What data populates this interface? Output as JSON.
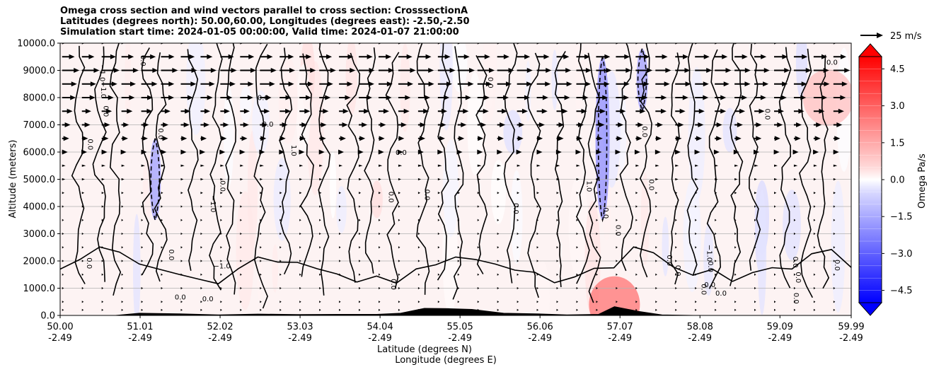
{
  "title_lines": [
    "Omega cross section and wind vectors parallel to cross section: CrosssectionA",
    "Latitudes (degrees north): 50.00,60.00, Longitudes (degrees east): -2.50,-2.50",
    "Simulation start time: 2024-01-05 00:00:00, Valid time: 2024-01-07 21:00:00"
  ],
  "chart_data": {
    "type": "contourf",
    "title": "Omega cross section and wind vectors parallel to cross section: CrosssectionA",
    "ylabel": "Altitude (meters)",
    "xlabel_lines": [
      "Latitude (degrees N)",
      "Longitude (degrees E)"
    ],
    "ylim": [
      0,
      10000
    ],
    "xlim": [
      50.0,
      59.99
    ],
    "y_ticks": [
      {
        "value": 0,
        "label": "0.0"
      },
      {
        "value": 1000,
        "label": "1000.0"
      },
      {
        "value": 2000,
        "label": "2000.0"
      },
      {
        "value": 3000,
        "label": "3000.0"
      },
      {
        "value": 4000,
        "label": "4000.0"
      },
      {
        "value": 5000,
        "label": "5000.0"
      },
      {
        "value": 6000,
        "label": "6000.0"
      },
      {
        "value": 7000,
        "label": "7000.0"
      },
      {
        "value": 8000,
        "label": "8000.0"
      },
      {
        "value": 9000,
        "label": "9000.0"
      },
      {
        "value": 10000,
        "label": "10000.0"
      }
    ],
    "x_ticks": [
      {
        "lat": 50.0,
        "lat_label": "50.00",
        "lon_label": "-2.49"
      },
      {
        "lat": 51.01,
        "lat_label": "51.01",
        "lon_label": "-2.49"
      },
      {
        "lat": 52.02,
        "lat_label": "52.02",
        "lon_label": "-2.49"
      },
      {
        "lat": 53.03,
        "lat_label": "53.03",
        "lon_label": "-2.49"
      },
      {
        "lat": 54.04,
        "lat_label": "54.04",
        "lon_label": "-2.49"
      },
      {
        "lat": 55.05,
        "lat_label": "55.05",
        "lon_label": "-2.49"
      },
      {
        "lat": 56.06,
        "lat_label": "56.06",
        "lon_label": "-2.49"
      },
      {
        "lat": 57.07,
        "lat_label": "57.07",
        "lon_label": "-2.49"
      },
      {
        "lat": 58.08,
        "lat_label": "58.08",
        "lon_label": "-2.49"
      },
      {
        "lat": 59.09,
        "lat_label": "59.09",
        "lon_label": "-2.49"
      },
      {
        "lat": 59.99,
        "lat_label": "59.99",
        "lon_label": "-2.49"
      }
    ],
    "grid": "horizontal",
    "colorbar": {
      "label": "Omega Pa/s",
      "range": [
        -5.0,
        5.0
      ],
      "extend": "both",
      "ticks": [
        {
          "value": 4.5,
          "label": "4.5"
        },
        {
          "value": 3.0,
          "label": "3.0"
        },
        {
          "value": 1.5,
          "label": "1.5"
        },
        {
          "value": 0.0,
          "label": "0.0"
        },
        {
          "value": -1.5,
          "label": "−1.5"
        },
        {
          "value": -3.0,
          "label": "−3.0"
        },
        {
          "value": -4.5,
          "label": "−4.5"
        }
      ],
      "levels": 20,
      "min_color": "#0000ff",
      "zero_color": "#ffffff",
      "max_color": "#ff0000"
    },
    "quiver_key": {
      "label": "25 m/s",
      "speed": 25
    },
    "contour_labels": [
      "0.0",
      "1.0",
      "−1.0"
    ],
    "features": {
      "strong_negative_column": {
        "lat": 56.85,
        "alt_range": [
          3500,
          9500
        ],
        "omega": -1.2
      },
      "negative_columns": [
        {
          "lat": 51.2,
          "alt_range": [
            3500,
            6500
          ],
          "omega": -1.0
        },
        {
          "lat": 57.35,
          "alt_range": [
            7500,
            9800
          ],
          "omega": -1.0
        }
      ],
      "positive_patches": [
        {
          "lat": 59.7,
          "alt": 8000,
          "omega": 0.9
        },
        {
          "lat": 57.0,
          "alt": 400,
          "omega": 2.0
        }
      ]
    },
    "wind_profile": {
      "description": "winds parallel to section, strongest aloft, weak near surface",
      "levels_m": [
        10000,
        9500,
        9000,
        8500,
        8000,
        7500,
        7000,
        6500,
        6000,
        5500,
        5000,
        4500,
        4000,
        3500,
        3000,
        2500,
        2000,
        1500,
        1000,
        500,
        200
      ],
      "speed_m_s": [
        4,
        18,
        22,
        20,
        17,
        14,
        11,
        9,
        7,
        5,
        4,
        3,
        2.5,
        2,
        1.5,
        1.2,
        1,
        1,
        1.5,
        2,
        1
      ]
    },
    "terrain_lat": [
      50.0,
      50.7,
      51.0,
      51.5,
      52.0,
      52.5,
      53.0,
      53.5,
      54.0,
      54.3,
      54.6,
      54.9,
      55.2,
      55.6,
      56.0,
      56.4,
      56.8,
      57.0,
      57.3,
      57.6,
      58.0,
      58.5,
      59.0,
      59.5,
      59.99
    ],
    "terrain_alt_m": [
      0,
      0,
      80,
      60,
      20,
      50,
      30,
      40,
      40,
      80,
      260,
      250,
      220,
      80,
      60,
      20,
      40,
      320,
      150,
      20,
      0,
      0,
      0,
      0,
      0
    ]
  }
}
